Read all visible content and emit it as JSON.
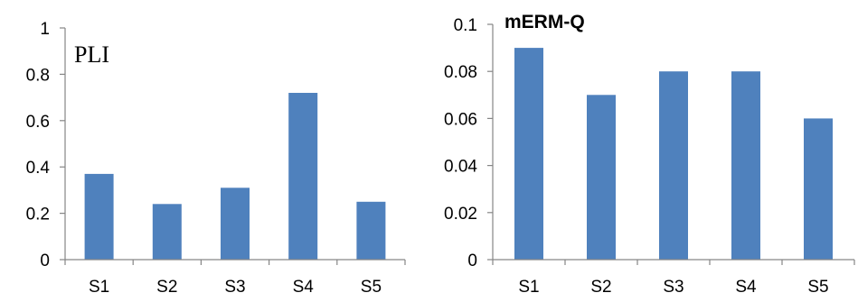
{
  "chart_data": [
    {
      "type": "bar",
      "title": "PLI",
      "categories": [
        "S1",
        "S2",
        "S3",
        "S4",
        "S5"
      ],
      "values": [
        0.37,
        0.24,
        0.31,
        0.72,
        0.25
      ],
      "ylim": [
        0,
        1
      ],
      "yticks": [
        0,
        0.2,
        0.4,
        0.6,
        0.8,
        1
      ],
      "ytick_labels": [
        "0",
        "0.2",
        "0.4",
        "0.6",
        "0.8",
        "1"
      ],
      "grid": false,
      "bar_color": "#4f81bd"
    },
    {
      "type": "bar",
      "title": "mERM-Q",
      "categories": [
        "S1",
        "S2",
        "S3",
        "S4",
        "S5"
      ],
      "values": [
        0.09,
        0.07,
        0.08,
        0.08,
        0.06
      ],
      "ylim": [
        0,
        0.1
      ],
      "yticks": [
        0,
        0.02,
        0.04,
        0.06,
        0.08,
        0.1
      ],
      "ytick_labels": [
        "0",
        "0.02",
        "0.04",
        "0.06",
        "0.08",
        "0.1"
      ],
      "grid": false,
      "bar_color": "#4f81bd"
    }
  ]
}
